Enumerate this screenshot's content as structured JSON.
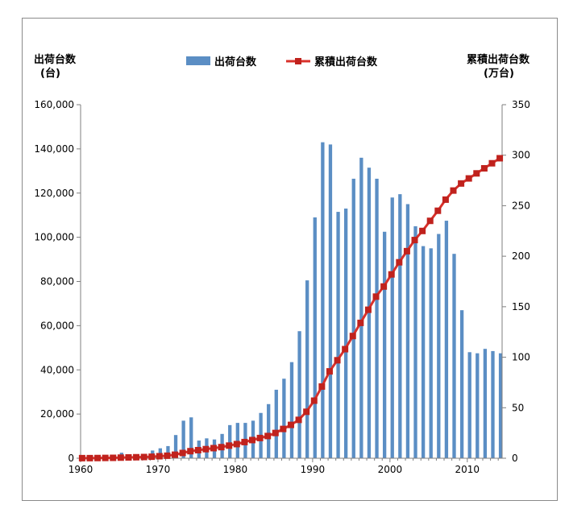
{
  "chart_data": {
    "type": "bar",
    "ylabel_left": [
      "出荷台数",
      "(台)"
    ],
    "ylabel_right": [
      "累積出荷台数",
      "(万台)"
    ],
    "left_axis": {
      "min": 0,
      "max": 160000,
      "step": 20000,
      "tick_labels": [
        "0",
        "20,000",
        "40,000",
        "60,000",
        "80,000",
        "100,000",
        "120,000",
        "140,000",
        "160,000"
      ]
    },
    "right_axis": {
      "min": 0,
      "max": 350,
      "step": 50,
      "tick_labels": [
        "0",
        "50",
        "100",
        "150",
        "200",
        "250",
        "300",
        "350"
      ]
    },
    "x_axis": {
      "min": 1960,
      "max": 2014,
      "tick_labels": [
        "1960",
        "1970",
        "1980",
        "1990",
        "2000",
        "2010"
      ]
    },
    "legend": [
      "出荷台数",
      "累積出荷台数"
    ],
    "colors": {
      "bar": "#5b8ec4",
      "line": "#d9312b",
      "marker": "#c0221d"
    },
    "years": [
      1960,
      1961,
      1962,
      1963,
      1964,
      1965,
      1966,
      1967,
      1968,
      1969,
      1970,
      1971,
      1972,
      1973,
      1974,
      1975,
      1976,
      1977,
      1978,
      1979,
      1980,
      1981,
      1982,
      1983,
      1984,
      1985,
      1986,
      1987,
      1988,
      1989,
      1990,
      1991,
      1992,
      1993,
      1994,
      1995,
      1996,
      1997,
      1998,
      1999,
      2000,
      2001,
      2002,
      2003,
      2004,
      2005,
      2006,
      2007,
      2008,
      2009,
      2010,
      2011,
      2012,
      2013,
      2014
    ],
    "series": [
      {
        "name": "出荷台数",
        "axis": "left",
        "values": [
          200,
          300,
          400,
          700,
          1000,
          2500,
          1800,
          1500,
          2000,
          3500,
          4500,
          5500,
          10500,
          17000,
          18500,
          8000,
          9000,
          8500,
          11000,
          15000,
          16000,
          16000,
          17000,
          20500,
          24500,
          31000,
          36000,
          43500,
          57500,
          80500,
          109000,
          143000,
          142000,
          111500,
          113000,
          126500,
          136000,
          131500,
          126500,
          102500,
          118000,
          119500,
          115000,
          105000,
          96000,
          95000,
          101500,
          107500,
          92500,
          67000,
          48000,
          47500,
          49500,
          48500,
          47500
        ]
      },
      {
        "name": "累積出荷台数",
        "axis": "right",
        "values": [
          0.1,
          0.1,
          0.2,
          0.3,
          0.4,
          0.6,
          0.8,
          1.0,
          1.2,
          1.5,
          2,
          2.5,
          3.5,
          5.2,
          7,
          8,
          9,
          10,
          11,
          12.5,
          14,
          16,
          18,
          20,
          22,
          25,
          29,
          33,
          38,
          46,
          57,
          71,
          86,
          97,
          108,
          121,
          134,
          147,
          160,
          170,
          182,
          194,
          205,
          216,
          225,
          235,
          245,
          256,
          265,
          272,
          277,
          282,
          287,
          292,
          297
        ]
      }
    ]
  }
}
